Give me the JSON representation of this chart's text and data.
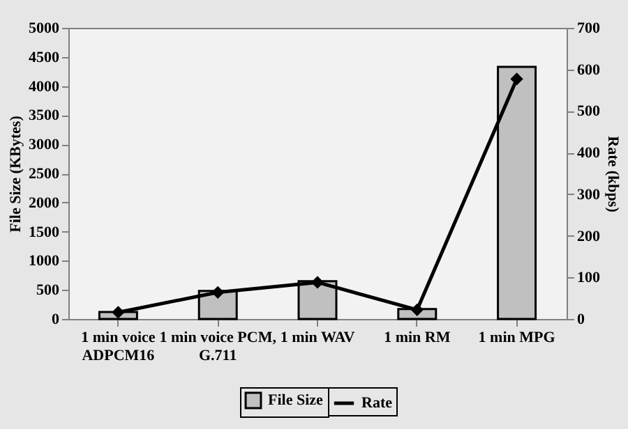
{
  "chart_data": {
    "type": "bar",
    "categories": [
      "1 min voice ADPCM16",
      "1 min voice PCM, G.711",
      "1 min WAV",
      "1 min RM",
      "1 min MPG"
    ],
    "series": [
      {
        "name": "File Size",
        "color": "#c0c0c0",
        "values": [
          120,
          480,
          650,
          170,
          4330
        ]
      },
      {
        "name": "Rate",
        "type": "line",
        "axis": "y2",
        "color": "#000000",
        "values": [
          16,
          64,
          88,
          22,
          577
        ]
      }
    ],
    "ylabel": "File Size (KBytes)",
    "y2label": "Rate (kbps)",
    "ylim": [
      0,
      5000
    ],
    "yticks": [
      0,
      500,
      1000,
      1500,
      2000,
      2500,
      3000,
      3500,
      4000,
      4500,
      5000
    ],
    "y2lim": [
      0,
      700
    ],
    "y2ticks": [
      0,
      100,
      200,
      300,
      400,
      500,
      600,
      700
    ],
    "grid": false,
    "legend": "bottom",
    "marker": "diamond",
    "line_style": "solid"
  }
}
